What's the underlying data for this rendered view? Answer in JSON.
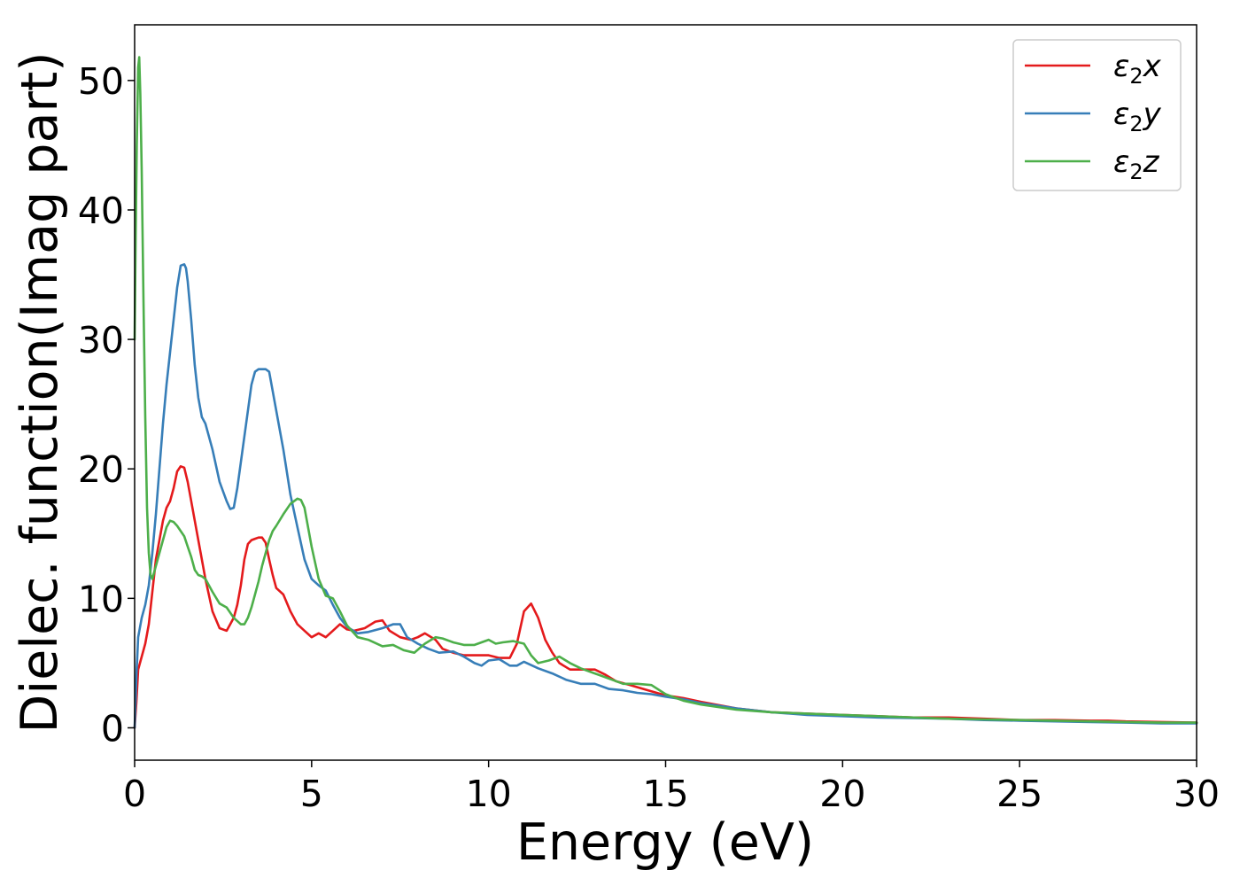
{
  "chart_data": {
    "type": "line",
    "title": "",
    "xlabel": "Energy (eV)",
    "ylabel": "Dielec. function(Imag part)",
    "xlim": [
      0,
      30
    ],
    "ylim": [
      -2.5,
      54.3
    ],
    "xticks": [
      0,
      5,
      10,
      15,
      20,
      25,
      30
    ],
    "yticks": [
      0,
      10,
      20,
      30,
      40,
      50
    ],
    "grid": false,
    "legend_position": "top-right",
    "series": [
      {
        "name": "ε₂x",
        "legend": {
          "base": "ε",
          "sub": "2",
          "var": "x"
        },
        "color": "#e41a1c",
        "x": [
          0,
          0.05,
          0.1,
          0.2,
          0.3,
          0.4,
          0.5,
          0.6,
          0.7,
          0.8,
          0.9,
          1.0,
          1.1,
          1.2,
          1.3,
          1.4,
          1.5,
          1.6,
          1.7,
          1.8,
          1.9,
          2.0,
          2.2,
          2.4,
          2.6,
          2.7,
          2.8,
          2.9,
          3.0,
          3.1,
          3.2,
          3.3,
          3.4,
          3.5,
          3.6,
          3.7,
          3.8,
          3.9,
          4.0,
          4.2,
          4.4,
          4.6,
          4.8,
          5.0,
          5.2,
          5.4,
          5.6,
          5.8,
          6.0,
          6.2,
          6.5,
          6.8,
          7.0,
          7.2,
          7.5,
          7.8,
          8.0,
          8.2,
          8.5,
          8.7,
          9.0,
          9.3,
          9.6,
          10.0,
          10.3,
          10.6,
          10.8,
          11.0,
          11.2,
          11.4,
          11.6,
          11.8,
          12.0,
          12.3,
          12.6,
          13.0,
          13.3,
          13.6,
          14.0,
          14.5,
          15.0,
          15.5,
          16.0,
          17.0,
          18.0,
          19.0,
          20.0,
          21.0,
          22.0,
          23.0,
          24.0,
          25.0,
          26.0,
          27.0,
          27.5,
          28.0,
          29.0,
          30.0
        ],
        "y": [
          0,
          2.0,
          4.5,
          5.5,
          6.5,
          8.0,
          10.5,
          13.0,
          14.5,
          16.0,
          17.0,
          17.5,
          18.5,
          19.8,
          20.2,
          20.1,
          19.0,
          17.5,
          16.0,
          14.5,
          13.0,
          11.5,
          9.0,
          7.7,
          7.5,
          8.0,
          8.5,
          9.5,
          11.0,
          13.0,
          14.2,
          14.5,
          14.6,
          14.7,
          14.7,
          14.3,
          13.0,
          11.8,
          10.8,
          10.3,
          9.0,
          8.0,
          7.5,
          7.0,
          7.3,
          7.0,
          7.5,
          8.0,
          7.6,
          7.5,
          7.7,
          8.2,
          8.3,
          7.5,
          7.0,
          6.8,
          7.0,
          7.3,
          6.8,
          6.1,
          5.8,
          5.6,
          5.6,
          5.6,
          5.4,
          5.4,
          6.5,
          9.0,
          9.6,
          8.5,
          6.8,
          5.8,
          5.0,
          4.5,
          4.5,
          4.5,
          4.1,
          3.6,
          3.3,
          2.9,
          2.5,
          2.3,
          2.0,
          1.5,
          1.2,
          1.1,
          1.0,
          0.9,
          0.8,
          0.8,
          0.7,
          0.6,
          0.6,
          0.55,
          0.55,
          0.5,
          0.45,
          0.4
        ]
      },
      {
        "name": "ε₂y",
        "legend": {
          "base": "ε",
          "sub": "2",
          "var": "y"
        },
        "color": "#377eb8",
        "x": [
          0,
          0.05,
          0.1,
          0.2,
          0.3,
          0.4,
          0.5,
          0.6,
          0.7,
          0.8,
          0.9,
          1.0,
          1.1,
          1.2,
          1.3,
          1.4,
          1.45,
          1.5,
          1.6,
          1.7,
          1.8,
          1.9,
          2.0,
          2.1,
          2.2,
          2.4,
          2.6,
          2.7,
          2.8,
          2.9,
          3.0,
          3.1,
          3.2,
          3.3,
          3.4,
          3.5,
          3.6,
          3.7,
          3.8,
          3.9,
          4.0,
          4.2,
          4.4,
          4.6,
          4.8,
          5.0,
          5.2,
          5.4,
          5.6,
          5.8,
          6.0,
          6.3,
          6.6,
          7.0,
          7.3,
          7.5,
          7.7,
          8.0,
          8.3,
          8.6,
          9.0,
          9.3,
          9.6,
          9.8,
          10.0,
          10.3,
          10.6,
          10.8,
          11.0,
          11.4,
          11.8,
          12.2,
          12.6,
          13.0,
          13.4,
          13.8,
          14.2,
          14.6,
          15.0,
          15.5,
          16.0,
          17.0,
          18.0,
          19.0,
          20.0,
          21.0,
          22.0,
          23.0,
          24.0,
          25.0,
          26.0,
          27.0,
          28.0,
          29.0,
          30.0
        ],
        "y": [
          0,
          4.0,
          7.0,
          8.5,
          9.5,
          11.0,
          13.5,
          16.5,
          20.0,
          23.5,
          26.5,
          29.0,
          31.5,
          34.0,
          35.7,
          35.8,
          35.5,
          34.5,
          31.5,
          28.0,
          25.5,
          24.0,
          23.5,
          22.5,
          21.5,
          19.0,
          17.5,
          16.9,
          17.0,
          18.5,
          20.5,
          22.5,
          24.5,
          26.5,
          27.5,
          27.7,
          27.7,
          27.7,
          27.5,
          26.0,
          24.5,
          21.5,
          18.0,
          15.5,
          13.0,
          11.5,
          11.0,
          10.6,
          9.5,
          8.5,
          7.8,
          7.3,
          7.4,
          7.7,
          8.0,
          8.0,
          7.0,
          6.5,
          6.1,
          5.8,
          5.9,
          5.5,
          5.0,
          4.8,
          5.2,
          5.3,
          4.8,
          4.8,
          5.1,
          4.6,
          4.2,
          3.7,
          3.4,
          3.4,
          3.0,
          2.9,
          2.7,
          2.6,
          2.4,
          2.2,
          1.9,
          1.5,
          1.2,
          1.0,
          0.9,
          0.8,
          0.75,
          0.7,
          0.6,
          0.55,
          0.5,
          0.45,
          0.4,
          0.35,
          0.35
        ]
      },
      {
        "name": "ε₂z",
        "legend": {
          "base": "ε",
          "sub": "2",
          "var": "z"
        },
        "color": "#4daf4a",
        "x": [
          0,
          0.03,
          0.06,
          0.1,
          0.13,
          0.16,
          0.2,
          0.25,
          0.3,
          0.35,
          0.4,
          0.45,
          0.5,
          0.6,
          0.7,
          0.8,
          0.9,
          1.0,
          1.1,
          1.2,
          1.3,
          1.4,
          1.5,
          1.6,
          1.7,
          1.8,
          1.9,
          2.0,
          2.2,
          2.4,
          2.6,
          2.8,
          3.0,
          3.1,
          3.2,
          3.3,
          3.4,
          3.5,
          3.6,
          3.7,
          3.8,
          3.9,
          4.0,
          4.2,
          4.4,
          4.6,
          4.7,
          4.8,
          5.0,
          5.2,
          5.4,
          5.6,
          5.8,
          6.0,
          6.3,
          6.6,
          7.0,
          7.3,
          7.6,
          7.9,
          8.2,
          8.5,
          8.7,
          9.0,
          9.3,
          9.6,
          9.8,
          10.0,
          10.2,
          10.4,
          10.7,
          11.0,
          11.2,
          11.4,
          11.7,
          12.0,
          12.3,
          12.6,
          13.0,
          13.4,
          13.8,
          14.2,
          14.6,
          15.0,
          15.5,
          16.0,
          17.0,
          18.0,
          19.0,
          20.0,
          21.0,
          22.0,
          23.0,
          24.0,
          25.0,
          26.0,
          27.0,
          28.0,
          29.0,
          30.0
        ],
        "y": [
          30.0,
          38.0,
          45.0,
          51.0,
          51.8,
          49.0,
          43.0,
          33.0,
          24.0,
          17.0,
          13.5,
          11.8,
          11.5,
          12.5,
          13.5,
          14.5,
          15.5,
          16.0,
          15.9,
          15.6,
          15.2,
          14.8,
          14.0,
          13.2,
          12.2,
          11.8,
          11.7,
          11.5,
          10.5,
          9.6,
          9.3,
          8.5,
          8.0,
          8.0,
          8.5,
          9.3,
          10.3,
          11.3,
          12.5,
          13.5,
          14.5,
          15.2,
          15.6,
          16.5,
          17.3,
          17.7,
          17.6,
          17.0,
          14.0,
          11.5,
          10.2,
          10.0,
          9.0,
          7.9,
          7.0,
          6.8,
          6.3,
          6.4,
          6.0,
          5.8,
          6.5,
          7.0,
          6.9,
          6.6,
          6.4,
          6.4,
          6.6,
          6.8,
          6.5,
          6.6,
          6.7,
          6.5,
          5.6,
          5.0,
          5.2,
          5.5,
          5.0,
          4.6,
          4.2,
          3.8,
          3.4,
          3.4,
          3.3,
          2.6,
          2.1,
          1.8,
          1.4,
          1.2,
          1.1,
          1.0,
          0.9,
          0.8,
          0.7,
          0.65,
          0.6,
          0.55,
          0.5,
          0.45,
          0.4,
          0.4
        ]
      }
    ]
  }
}
